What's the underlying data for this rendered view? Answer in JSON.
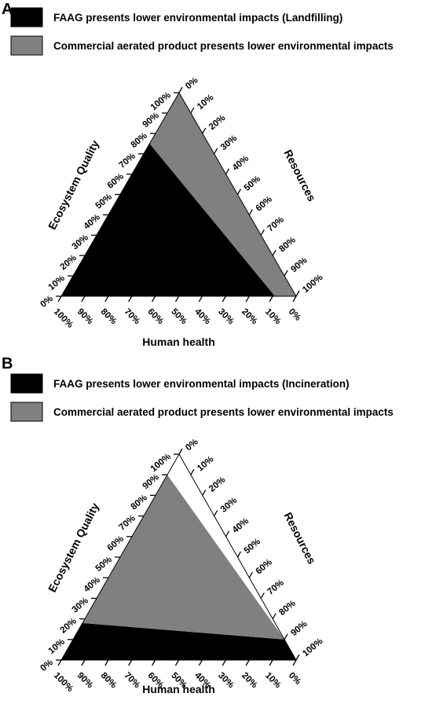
{
  "chart_data": [
    {
      "type": "ternary-area",
      "panel_label": "A",
      "legend": [
        {
          "label": "FAAG presents lower environmental impacts (Landfilling)",
          "color": "#000000"
        },
        {
          "label": "Commercial aerated product presents lower environmental impacts",
          "color": "#808080"
        }
      ],
      "axes": {
        "bottom": {
          "title": "Human health",
          "ticks": [
            "100%",
            "90%",
            "80%",
            "70%",
            "60%",
            "50%",
            "40%",
            "30%",
            "20%",
            "10%",
            "0%"
          ]
        },
        "left": {
          "title": "Ecosystem Quality",
          "ticks": [
            "0%",
            "10%",
            "20%",
            "30%",
            "40%",
            "50%",
            "60%",
            "70%",
            "80%",
            "90%",
            "100%"
          ]
        },
        "right": {
          "title": "Resources",
          "ticks": [
            "0%",
            "10%",
            "20%",
            "30%",
            "40%",
            "50%",
            "60%",
            "70%",
            "80%",
            "90%",
            "100%"
          ]
        }
      },
      "regions": [
        {
          "series": "FAAG",
          "color": "#000000",
          "vertices_ecosystem_resources": [
            [
              0,
              0
            ],
            [
              0,
              0.91
            ],
            [
              0.75,
              0
            ]
          ]
        },
        {
          "series": "Commercial",
          "color": "#808080",
          "vertices_ecosystem_resources": [
            [
              0.75,
              0
            ],
            [
              1.0,
              0
            ],
            [
              0,
              1.0
            ],
            [
              0,
              0.91
            ]
          ]
        }
      ]
    },
    {
      "type": "ternary-area",
      "panel_label": "B",
      "legend": [
        {
          "label": "FAAG presents lower environmental impacts (Incineration)",
          "color": "#000000"
        },
        {
          "label": "Commercial aerated product presents lower environmental impacts",
          "color": "#808080"
        }
      ],
      "axes": {
        "bottom": {
          "title": "Human health",
          "ticks": [
            "100%",
            "90%",
            "80%",
            "70%",
            "60%",
            "50%",
            "40%",
            "30%",
            "20%",
            "10%",
            "0%"
          ]
        },
        "left": {
          "title": "Ecosystem Quality",
          "ticks": [
            "0%",
            "10%",
            "20%",
            "30%",
            "40%",
            "50%",
            "60%",
            "70%",
            "80%",
            "90%",
            "100%"
          ]
        },
        "right": {
          "title": "Resources",
          "ticks": [
            "0%",
            "10%",
            "20%",
            "30%",
            "40%",
            "50%",
            "60%",
            "70%",
            "80%",
            "90%",
            "100%"
          ]
        }
      },
      "regions": [
        {
          "series": "FAAG",
          "color": "#000000",
          "vertices_ecosystem_resources": [
            [
              0,
              0
            ],
            [
              0,
              1.0
            ],
            [
              0.1,
              0.9
            ],
            [
              0.18,
              0
            ]
          ]
        },
        {
          "series": "Commercial",
          "color": "#808080",
          "vertices_ecosystem_resources": [
            [
              0.1,
              0.9
            ],
            [
              0.18,
              0
            ],
            [
              1.0,
              0
            ],
            [
              0.9,
              0.0
            ]
          ]
        }
      ]
    }
  ]
}
